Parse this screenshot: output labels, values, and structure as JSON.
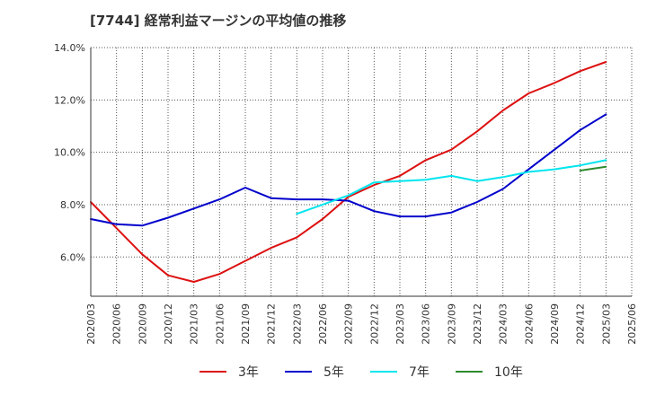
{
  "chart_data": {
    "type": "line",
    "title": "[7744]  経常利益マージンの平均値の推移",
    "xlabel": "",
    "ylabel": "",
    "x": [
      "2020/03",
      "2020/06",
      "2020/09",
      "2020/12",
      "2021/03",
      "2021/06",
      "2021/09",
      "2021/12",
      "2022/03",
      "2022/06",
      "2022/09",
      "2022/12",
      "2023/03",
      "2023/06",
      "2023/09",
      "2023/12",
      "2024/03",
      "2024/06",
      "2024/09",
      "2024/12",
      "2025/03",
      "2025/06"
    ],
    "ylim": [
      4.5,
      14.0
    ],
    "yticks": [
      6.0,
      8.0,
      10.0,
      12.0,
      14.0
    ],
    "ytick_labels": [
      "6.0%",
      "8.0%",
      "10.0%",
      "12.0%",
      "14.0%"
    ],
    "grid": true,
    "legend_position": "bottom",
    "series": [
      {
        "name": "3年",
        "color": "#dd1111",
        "values": [
          8.1,
          7.1,
          6.1,
          5.3,
          5.05,
          5.35,
          5.85,
          6.35,
          6.75,
          7.45,
          8.3,
          8.75,
          9.1,
          9.7,
          10.1,
          10.8,
          11.6,
          12.25,
          12.65,
          13.1,
          13.45,
          null
        ]
      },
      {
        "name": "5年",
        "color": "#0000cc",
        "values": [
          7.45,
          7.25,
          7.2,
          7.5,
          7.85,
          8.2,
          8.65,
          8.25,
          8.2,
          8.2,
          8.15,
          7.75,
          7.55,
          7.55,
          7.7,
          8.1,
          8.6,
          9.35,
          10.1,
          10.85,
          11.45,
          null
        ]
      },
      {
        "name": "7年",
        "color": "#00e5ee",
        "values": [
          null,
          null,
          null,
          null,
          null,
          null,
          null,
          null,
          7.65,
          8.0,
          8.35,
          8.85,
          8.9,
          8.95,
          9.1,
          8.9,
          9.05,
          9.25,
          9.35,
          9.5,
          9.7,
          null
        ]
      },
      {
        "name": "10年",
        "color": "#2e8b2e",
        "values": [
          null,
          null,
          null,
          null,
          null,
          null,
          null,
          null,
          null,
          null,
          null,
          null,
          null,
          null,
          null,
          null,
          null,
          null,
          null,
          9.3,
          9.45,
          null
        ]
      }
    ]
  }
}
